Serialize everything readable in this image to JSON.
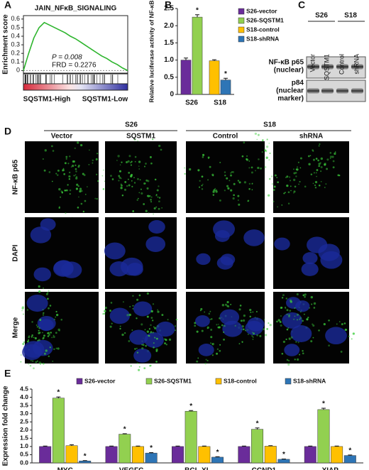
{
  "panels": {
    "labels": [
      "A",
      "B",
      "C",
      "D",
      "E"
    ],
    "blot": {
      "groups": [
        "S26",
        "S18"
      ],
      "lanes": [
        "Vector",
        "SQSTM1",
        "Control",
        "shRNA"
      ],
      "rows": [
        [
          "NF-κB p65",
          "(nuclear)"
        ],
        [
          "p84",
          "(nuclear",
          "marker)"
        ]
      ]
    },
    "microscopy": {
      "groups": [
        "S26",
        "S18"
      ],
      "columns": [
        "Vector",
        "SQSTM1",
        "Control",
        "shRNA"
      ],
      "rows": [
        "NF-κB p65",
        "DAPI",
        "Merge"
      ]
    }
  },
  "chart_data": [
    {
      "type": "line",
      "title": "JAIN_NFκB_SIGNALING",
      "y_label": "Enrichment score",
      "color": "#2db52d",
      "x": [
        0,
        5,
        10,
        15,
        20,
        25,
        30,
        35,
        40,
        45,
        50,
        55,
        60,
        65,
        70,
        75,
        80,
        85,
        90,
        95,
        100
      ],
      "values": [
        0,
        0.2,
        0.38,
        0.5,
        0.56,
        0.53,
        0.5,
        0.47,
        0.44,
        0.4,
        0.37,
        0.33,
        0.29,
        0.25,
        0.21,
        0.17,
        0.14,
        0.1,
        0.07,
        0.03,
        0
      ],
      "xlim": [
        0,
        100
      ],
      "ylim": [
        -0.03,
        0.64
      ],
      "yticks": [
        0,
        0.1,
        0.2,
        0.3,
        0.4,
        0.5,
        0.6
      ],
      "annotations": [
        "P = 0.008",
        "FRD = 0.2276"
      ],
      "x_labels": [
        "SQSTM1-High",
        "SQSTM1-Low"
      ]
    },
    {
      "type": "bar",
      "y_label": "Relative luciferase activity of NF-κB",
      "categories": [
        "S26",
        "S18"
      ],
      "series": [
        {
          "name": "S26-vector",
          "color": "#6a2c9a",
          "values": [
            1.0,
            null
          ],
          "errors": [
            0.06,
            null
          ]
        },
        {
          "name": "S26-SQSTM1",
          "color": "#92d050",
          "values": [
            2.25,
            null
          ],
          "errors": [
            0.07,
            null
          ]
        },
        {
          "name": "S18-control",
          "color": "#ffc000",
          "values": [
            null,
            0.98
          ],
          "errors": [
            null,
            0.03
          ]
        },
        {
          "name": "S18-shRNA",
          "color": "#2e75b6",
          "values": [
            null,
            0.42
          ],
          "errors": [
            null,
            0.05
          ]
        }
      ],
      "ylim": [
        0,
        2.5
      ],
      "yticks": [
        0,
        0.5,
        {
          "value": 1,
          "label": "1.0"
        },
        {
          "value": 1.5,
          "label": "1.5"
        },
        {
          "value": 2,
          "label": "2.0"
        },
        {
          "value": 2.5,
          "label": "2.5"
        }
      ],
      "significance_label": "*",
      "significant_series": [
        "S26-SQSTM1",
        "S18-shRNA"
      ]
    },
    {
      "type": "bar",
      "y_label": "Expression fold change",
      "categories": [
        "MYC",
        "VEGFC",
        "BCL-XL",
        "CCND1",
        "XIAP"
      ],
      "series": [
        {
          "name": "S26-vector",
          "color": "#6a2c9a",
          "values": [
            1.0,
            1.0,
            1.0,
            1.0,
            1.0
          ],
          "errors": [
            0.03,
            0.03,
            0.03,
            0.03,
            0.03
          ]
        },
        {
          "name": "S26-SQSTM1",
          "color": "#92d050",
          "values": [
            3.95,
            1.75,
            3.15,
            2.05,
            3.25
          ],
          "errors": [
            0.07,
            0.03,
            0.04,
            0.08,
            0.08
          ]
        },
        {
          "name": "S18-control",
          "color": "#ffc000",
          "values": [
            1.05,
            1.0,
            1.0,
            1.02,
            1.0
          ],
          "errors": [
            0.06,
            0.03,
            0.03,
            0.03,
            0.03
          ]
        },
        {
          "name": "S18-shRNA",
          "color": "#2e75b6",
          "values": [
            0.12,
            0.6,
            0.35,
            0.22,
            0.45
          ],
          "errors": [
            0.02,
            0.03,
            0.03,
            0.02,
            0.03
          ]
        }
      ],
      "ylim": [
        0,
        4.5
      ],
      "yticks": [
        {
          "value": 0,
          "label": "0.0"
        },
        {
          "value": 0.5,
          "label": "0.5"
        },
        {
          "value": 1,
          "label": "1.0"
        },
        {
          "value": 1.5,
          "label": "1.5"
        },
        {
          "value": 2,
          "label": "2.0"
        },
        {
          "value": 2.5,
          "label": "2.5"
        },
        {
          "value": 3,
          "label": "3.0"
        },
        {
          "value": 3.5,
          "label": "3.5"
        },
        {
          "value": 4,
          "label": "4.0"
        },
        {
          "value": 4.5,
          "label": "4.5"
        }
      ],
      "significance_label": "*",
      "significant_series": [
        "S26-SQSTM1",
        "S18-shRNA"
      ]
    }
  ]
}
